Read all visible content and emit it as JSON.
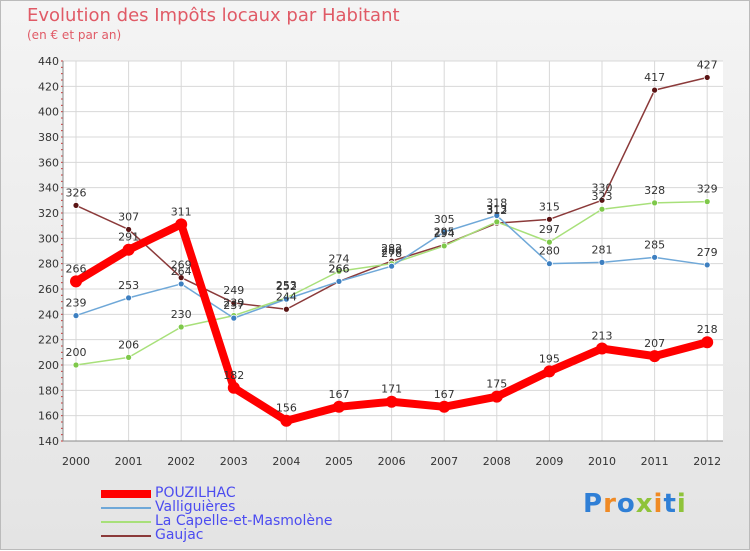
{
  "title": "Evolution des Impôts locaux par Habitant",
  "subtitle": "(en € et par an)",
  "logo": {
    "letters": [
      "P",
      "r",
      "o",
      "x",
      "i",
      "t",
      "i"
    ],
    "colors": [
      "#2f7fd6",
      "#f08a24",
      "#2f7fd6",
      "#8fc33a",
      "#f08a24",
      "#2f7fd6",
      "#8fc33a"
    ]
  },
  "chart_data": {
    "type": "line",
    "title": "Evolution des Impôts locaux par Habitant",
    "subtitle": "(en € et par an)",
    "xlabel": "",
    "ylabel": "",
    "x": [
      "2000",
      "2001",
      "2002",
      "2003",
      "2004",
      "2005",
      "2006",
      "2007",
      "2008",
      "2009",
      "2010",
      "2011",
      "2012"
    ],
    "ylim": [
      140,
      440
    ],
    "yticks": [
      "140",
      "160",
      "180",
      "200",
      "220",
      "240",
      "260",
      "280",
      "300",
      "320",
      "340",
      "360",
      "380",
      "400",
      "420",
      "440"
    ],
    "grid": true,
    "legend_position": "bottom-left",
    "series": [
      {
        "name": "POUZILHAC",
        "color": "#ff0000",
        "marker": "#ff0000",
        "values": [
          266,
          291,
          311,
          182,
          156,
          167,
          171,
          167,
          175,
          195,
          213,
          207,
          218
        ]
      },
      {
        "name": "Valliguières",
        "color": "#6fa8d8",
        "marker": "#3d7fc0",
        "values": [
          239,
          253,
          264,
          237,
          252,
          266,
          278,
          305,
          318,
          280,
          281,
          285,
          279
        ]
      },
      {
        "name": "La Capelle-et-Masmolène",
        "color": "#a8e07a",
        "marker": "#7ec84a",
        "values": [
          200,
          206,
          230,
          239,
          253,
          274,
          280,
          294,
          313,
          297,
          323,
          328,
          329
        ]
      },
      {
        "name": "Gaujac",
        "color": "#8b3a3a",
        "marker": "#5a1414",
        "values": [
          326,
          307,
          269,
          249,
          244,
          266,
          282,
          295,
          312,
          315,
          330,
          417,
          427
        ]
      }
    ],
    "point_labels": [
      [
        "266",
        "291",
        "311",
        "182",
        "156",
        "167",
        "171",
        "167",
        "175",
        "195",
        "213",
        "207",
        "218"
      ],
      [
        "239",
        "253",
        "264",
        "237",
        "252",
        "266",
        "278",
        "305",
        "318",
        "280",
        "281",
        "285",
        "279"
      ],
      [
        "200",
        "206",
        "230",
        "239",
        "253",
        "274",
        "280",
        "294",
        "313",
        "297",
        "323",
        "328",
        "329"
      ],
      [
        "326",
        "307",
        "269",
        "249",
        "244",
        "266",
        "282",
        "295",
        "312",
        "315",
        "330",
        "417",
        "427"
      ]
    ]
  }
}
